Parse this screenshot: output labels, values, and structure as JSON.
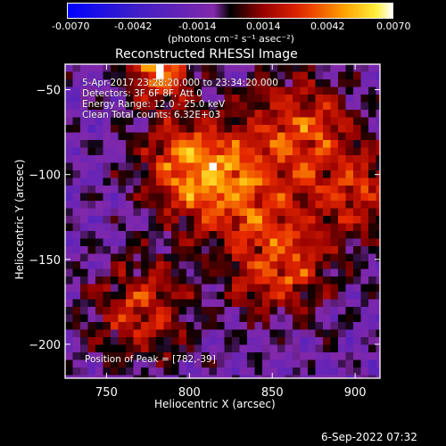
{
  "colorbar": {
    "ticks": [
      "-0.0070",
      "-0.0042",
      "-0.0014",
      "0.0014",
      "0.0042",
      "0.0070"
    ],
    "unit_label": "(photons cm⁻² s⁻¹ asec⁻²)"
  },
  "plot": {
    "title": "Reconstructed RHESSI Image",
    "info_lines": [
      "5-Apr-2017 23:28:20.000 to 23:34:20.000",
      "Detectors: 3F 6F 8F, Att 0",
      "Energy Range: 12.0 - 25.0 keV",
      "Clean     Total counts: 6.32E+03"
    ],
    "peak_label": "Position of Peak = [782,-39]",
    "footer_timestamp": "6-Sep-2022 07:32"
  },
  "chart_data": {
    "type": "heatmap",
    "title": "Reconstructed RHESSI Image",
    "xlabel": "Heliocentric X (arcsec)",
    "ylabel": "Heliocentric Y (arcsec)",
    "xlim": [
      725,
      915
    ],
    "ylim": [
      -220,
      -35
    ],
    "xticks": [
      750,
      800,
      850,
      900
    ],
    "yticks": [
      -50,
      -100,
      -150,
      -200
    ],
    "colorbar_range": [
      -0.007,
      0.007
    ],
    "colorbar_ticks": [
      -0.007,
      -0.0042,
      -0.0014,
      0.0014,
      0.0042,
      0.007
    ],
    "peak": {
      "x": 782,
      "y": -39
    },
    "bright_regions": [
      {
        "x": 782,
        "y": -39,
        "level": 0.007
      },
      {
        "x": 800,
        "y": -95,
        "level": 0.005
      },
      {
        "x": 855,
        "y": -155,
        "level": 0.0045
      },
      {
        "x": 865,
        "y": -70,
        "level": 0.0042
      },
      {
        "x": 770,
        "y": -180,
        "level": 0.004
      },
      {
        "x": 900,
        "y": -110,
        "level": 0.0038
      },
      {
        "x": 830,
        "y": -110,
        "level": 0.0035
      }
    ]
  }
}
